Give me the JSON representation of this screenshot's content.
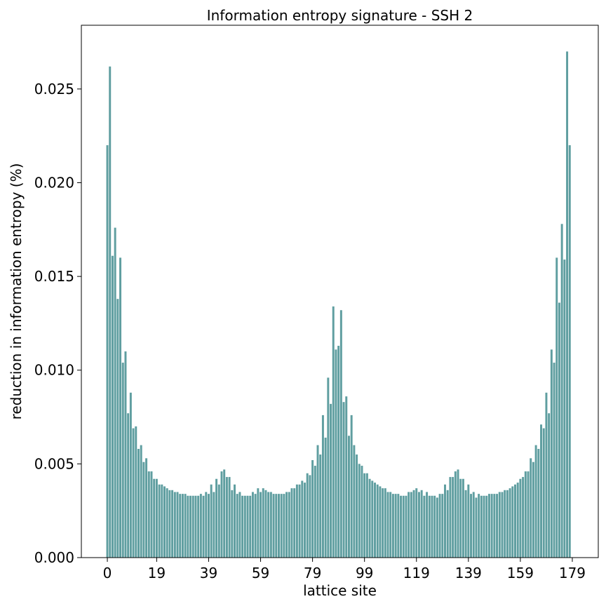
{
  "chart_data": {
    "type": "bar",
    "title": "Information entropy signature - SSH 2",
    "xlabel": "lattice site",
    "ylabel": "reduction in information entropy (%)",
    "bar_color": "#5f9ea0",
    "xlim": [
      -10,
      189
    ],
    "ylim": [
      0,
      0.0284
    ],
    "xticks": [
      0,
      19,
      39,
      59,
      79,
      99,
      119,
      139,
      159,
      179
    ],
    "xtick_labels": [
      "0",
      "19",
      "39",
      "59",
      "79",
      "99",
      "119",
      "139",
      "159",
      "179"
    ],
    "yticks": [
      0.0,
      0.005,
      0.01,
      0.015,
      0.02,
      0.025
    ],
    "ytick_labels": [
      "0.000",
      "0.005",
      "0.010",
      "0.015",
      "0.020",
      "0.025"
    ],
    "grid": false,
    "categories_range": [
      0,
      179
    ],
    "values": [
      0.022,
      0.0262,
      0.0161,
      0.0176,
      0.0138,
      0.016,
      0.0104,
      0.011,
      0.0077,
      0.0088,
      0.0069,
      0.007,
      0.0058,
      0.006,
      0.0051,
      0.0053,
      0.0046,
      0.0046,
      0.0042,
      0.0042,
      0.0039,
      0.0039,
      0.0038,
      0.0037,
      0.0036,
      0.0036,
      0.0035,
      0.0035,
      0.0034,
      0.0034,
      0.0034,
      0.0033,
      0.0033,
      0.0033,
      0.0033,
      0.0033,
      0.0034,
      0.0033,
      0.0035,
      0.0034,
      0.0039,
      0.0035,
      0.0042,
      0.0039,
      0.0046,
      0.0047,
      0.0043,
      0.0043,
      0.0036,
      0.0039,
      0.0034,
      0.0035,
      0.0033,
      0.0033,
      0.0033,
      0.0033,
      0.0035,
      0.0034,
      0.0037,
      0.0035,
      0.0037,
      0.0036,
      0.0035,
      0.0035,
      0.0034,
      0.0034,
      0.0034,
      0.0034,
      0.0034,
      0.0035,
      0.0035,
      0.0037,
      0.0037,
      0.0039,
      0.0039,
      0.0041,
      0.004,
      0.0045,
      0.0044,
      0.0052,
      0.0049,
      0.006,
      0.0055,
      0.0076,
      0.0064,
      0.0096,
      0.0082,
      0.0134,
      0.0111,
      0.0113,
      0.0132,
      0.0083,
      0.0086,
      0.0065,
      0.0076,
      0.006,
      0.0055,
      0.005,
      0.0049,
      0.0045,
      0.0045,
      0.0042,
      0.0041,
      0.004,
      0.0039,
      0.0038,
      0.0037,
      0.0037,
      0.0035,
      0.0035,
      0.0034,
      0.0034,
      0.0034,
      0.0033,
      0.0033,
      0.0033,
      0.0035,
      0.0035,
      0.0036,
      0.0037,
      0.0035,
      0.0036,
      0.0033,
      0.0035,
      0.0033,
      0.0033,
      0.0033,
      0.0032,
      0.0034,
      0.0034,
      0.0039,
      0.0036,
      0.0043,
      0.0043,
      0.0046,
      0.0047,
      0.0042,
      0.0042,
      0.0036,
      0.0039,
      0.0034,
      0.0035,
      0.0032,
      0.0034,
      0.0033,
      0.0033,
      0.0033,
      0.0034,
      0.0034,
      0.0034,
      0.0034,
      0.0035,
      0.0035,
      0.0036,
      0.0036,
      0.0037,
      0.0038,
      0.0039,
      0.004,
      0.0042,
      0.0043,
      0.0046,
      0.0046,
      0.0053,
      0.0051,
      0.006,
      0.0058,
      0.0071,
      0.0069,
      0.0088,
      0.0077,
      0.0111,
      0.0104,
      0.016,
      0.0136,
      0.0178,
      0.0159,
      0.027,
      0.022,
      0.0
    ]
  }
}
